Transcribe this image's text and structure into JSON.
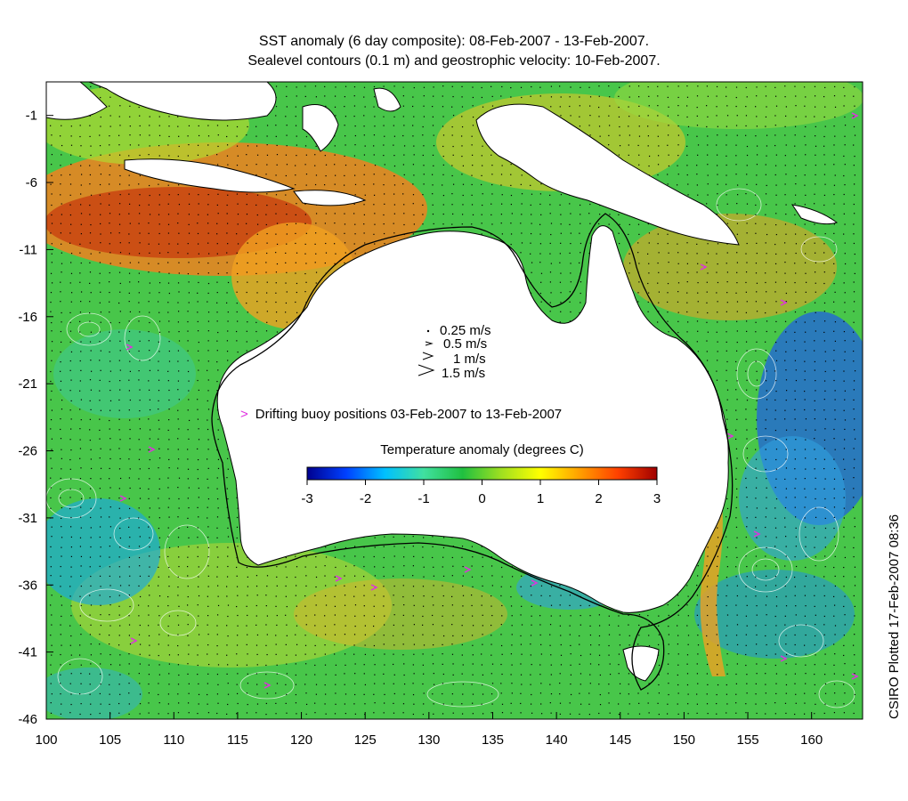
{
  "title_line1": "SST anomaly (6 day composite): 08-Feb-2007 - 13-Feb-2007.",
  "title_line2": "Sealevel contours (0.1 m) and geostrophic velocity: 10-Feb-2007.",
  "credit": "CSIRO Plotted 17-Feb-2007 08:36",
  "x_ticks": [
    "100",
    "105",
    "110",
    "115",
    "120",
    "125",
    "130",
    "135",
    "140",
    "145",
    "150",
    "155",
    "160"
  ],
  "y_ticks": [
    "-1",
    "-6",
    "-11",
    "-16",
    "-21",
    "-26",
    "-31",
    "-36",
    "-41",
    "-46"
  ],
  "velocity_legend": [
    "0.25 m/s",
    "0.5 m/s",
    "1 m/s",
    "1.5 m/s"
  ],
  "buoy_legend": "Drifting buoy positions 03-Feb-2007 to 13-Feb-2007",
  "colorbar": {
    "title": "Temperature anomaly (degrees C)",
    "ticks": [
      "-3",
      "-2",
      "-1",
      "0",
      "1",
      "2",
      "3"
    ],
    "colors": [
      "#00008f",
      "#0040ff",
      "#00c0ff",
      "#40e0a0",
      "#20c040",
      "#a0e020",
      "#ffff00",
      "#ffa000",
      "#ff4000",
      "#a00000"
    ]
  },
  "colors": {
    "land": "#ffffff",
    "coast": "#000000",
    "contour": "#ffffff",
    "buoy": "#e030e0"
  }
}
